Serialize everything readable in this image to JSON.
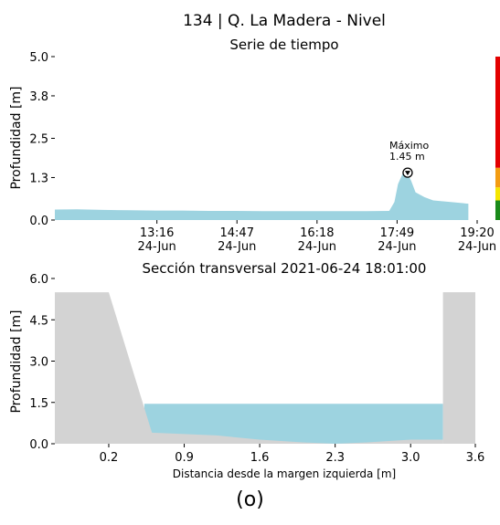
{
  "figure": {
    "title": "134 | Q. La Madera - Nivel",
    "caption": "(o)"
  },
  "colors": {
    "water": "#9dd3e0",
    "ground": "#d3d3d3",
    "alert_red": "#e30000",
    "alert_orange": "#f39c12",
    "alert_yellow": "#f5e600",
    "alert_green": "#1a8a1a"
  },
  "chart_data": [
    {
      "type": "area",
      "title": "Serie de tiempo",
      "xlabel": "",
      "ylabel": "Profundidad [m]",
      "ylim": [
        0,
        5.0
      ],
      "xlim": [
        "2021-06-24 11:20",
        "2021-06-24 19:20"
      ],
      "yticks": [
        "0.0",
        "1.3",
        "2.5",
        "3.8",
        "5.0"
      ],
      "xticks": [
        {
          "time": "13:16",
          "date": "24-Jun",
          "x": "2021-06-24 13:16"
        },
        {
          "time": "14:47",
          "date": "24-Jun",
          "x": "2021-06-24 14:47"
        },
        {
          "time": "16:18",
          "date": "24-Jun",
          "x": "2021-06-24 16:18"
        },
        {
          "time": "17:49",
          "date": "24-Jun",
          "x": "2021-06-24 17:49"
        },
        {
          "time": "19:20",
          "date": "24-Jun",
          "x": "2021-06-24 19:20"
        }
      ],
      "series": [
        {
          "x": [
            "2021-06-24 11:20",
            "2021-06-24 11:45",
            "2021-06-24 12:15",
            "2021-06-24 12:45",
            "2021-06-24 13:15",
            "2021-06-24 13:45",
            "2021-06-24 14:15",
            "2021-06-24 14:45",
            "2021-06-24 15:15",
            "2021-06-24 15:45",
            "2021-06-24 16:15",
            "2021-06-24 16:45",
            "2021-06-24 17:15",
            "2021-06-24 17:40",
            "2021-06-24 17:46",
            "2021-06-24 17:50",
            "2021-06-24 17:55",
            "2021-06-24 18:00",
            "2021-06-24 18:05",
            "2021-06-24 18:10",
            "2021-06-24 18:20",
            "2021-06-24 18:30",
            "2021-06-24 18:50",
            "2021-06-24 19:10"
          ],
          "values": [
            0.32,
            0.33,
            0.31,
            0.3,
            0.29,
            0.29,
            0.28,
            0.28,
            0.27,
            0.27,
            0.27,
            0.27,
            0.27,
            0.28,
            0.55,
            1.1,
            1.4,
            1.45,
            1.2,
            0.85,
            0.7,
            0.6,
            0.55,
            0.5
          ]
        }
      ],
      "annotation": {
        "label": "Máximo",
        "value_text": "1.45 m",
        "x": "2021-06-24 18:01",
        "y": 1.45
      },
      "alert_levels": [
        {
          "color": "green",
          "from": 0,
          "to": 0.6
        },
        {
          "color": "yellow",
          "from": 0.6,
          "to": 1.0
        },
        {
          "color": "orange",
          "from": 1.0,
          "to": 1.6
        },
        {
          "color": "red",
          "from": 1.6,
          "to": 5.0
        }
      ]
    },
    {
      "type": "area",
      "title": "Sección transversal 2021-06-24 18:01:00",
      "xlabel": "Distancia desde la margen izquierda [m]",
      "ylabel": "Profundidad [m]",
      "xlim": [
        -0.3,
        3.6
      ],
      "ylim": [
        0,
        6.0
      ],
      "xticks": [
        "0.2",
        "0.9",
        "1.6",
        "2.3",
        "3.0",
        "3.6"
      ],
      "yticks": [
        "0.0",
        "1.5",
        "3.0",
        "4.5",
        "6.0"
      ],
      "ground_profile": {
        "x": [
          -0.3,
          0.2,
          0.6,
          1.2,
          1.6,
          2.0,
          2.3,
          2.6,
          3.0,
          3.3
        ],
        "y": [
          5.5,
          5.5,
          0.4,
          0.3,
          0.15,
          0.05,
          0.0,
          0.05,
          0.15,
          0.15
        ]
      },
      "right_bank": {
        "x": [
          3.3,
          3.3,
          3.6,
          3.6
        ],
        "y": [
          0.0,
          5.5,
          5.5,
          0.0
        ]
      },
      "water_level": 1.45,
      "water_extent": [
        0.53,
        3.3
      ]
    }
  ]
}
